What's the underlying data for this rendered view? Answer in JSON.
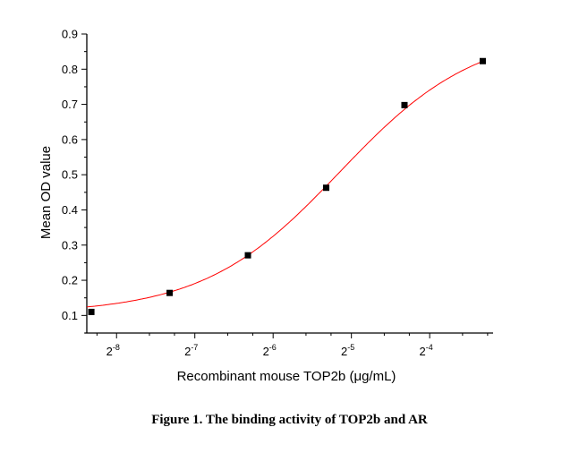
{
  "chart_data": {
    "type": "scatter",
    "title": "",
    "xlabel": "Recombinant mouse TOP2b (μg/mL)",
    "ylabel": "Mean OD value",
    "xscale": "log2",
    "xlim_log2": [
      -8.38,
      -3.19
    ],
    "ylim": [
      0.05,
      0.9
    ],
    "x_ticks_log2": [
      -8,
      -7,
      -6,
      -5,
      -4
    ],
    "x_tick_base": "2",
    "y_ticks": [
      0.1,
      0.2,
      0.3,
      0.4,
      0.5,
      0.6,
      0.7,
      0.8,
      0.9
    ],
    "grid": false,
    "series": [
      {
        "name": "Mean OD",
        "x": [
          0.003125,
          0.00625,
          0.0125,
          0.025,
          0.05,
          0.1
        ],
        "y": [
          0.11,
          0.164,
          0.271,
          0.463,
          0.698,
          0.823
        ],
        "marker": "square",
        "color": "#000000"
      }
    ],
    "fit": {
      "type": "4PL sigmoid fit",
      "color": "#ff0000",
      "bottom": 0.105,
      "top": 0.91,
      "log2_ec50": -5.15,
      "slope": 1.15
    }
  },
  "caption": "Figure 1. The binding activity of TOP2b and AR"
}
